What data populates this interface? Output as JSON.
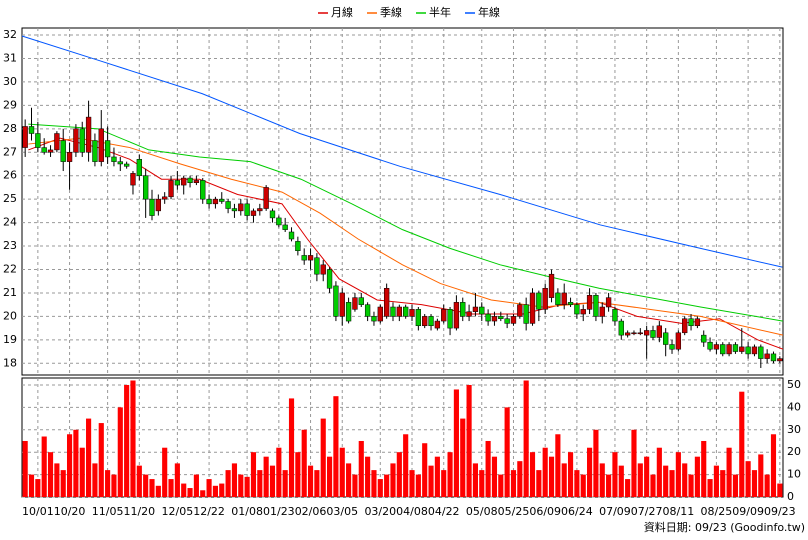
{
  "chart_data": {
    "type": "candlestick",
    "xlim": [
      0,
      120
    ],
    "xticks": [
      {
        "value": 2,
        "label": "10/01"
      },
      {
        "value": 7,
        "label": "10/20"
      },
      {
        "value": 13,
        "label": "11/05"
      },
      {
        "value": 18,
        "label": "11/20"
      },
      {
        "value": 24,
        "label": "12/05"
      },
      {
        "value": 29,
        "label": "12/22"
      },
      {
        "value": 35,
        "label": "01/08"
      },
      {
        "value": 40,
        "label": "01/23"
      },
      {
        "value": 45,
        "label": "02/06"
      },
      {
        "value": 50,
        "label": "03/05"
      },
      {
        "value": 56,
        "label": "03/20"
      },
      {
        "value": 61,
        "label": "04/08"
      },
      {
        "value": 66,
        "label": "04/22"
      },
      {
        "value": 72,
        "label": "05/08"
      },
      {
        "value": 77,
        "label": "05/25"
      },
      {
        "value": 82,
        "label": "06/09"
      },
      {
        "value": 87,
        "label": "06/24"
      },
      {
        "value": 93,
        "label": "07/09"
      },
      {
        "value": 98,
        "label": "07/27"
      },
      {
        "value": 103,
        "label": "08/11"
      },
      {
        "value": 109,
        "label": "08/25"
      },
      {
        "value": 114,
        "label": "09/09"
      },
      {
        "value": 119,
        "label": "09/23"
      }
    ],
    "ylim": [
      17.5,
      32.3
    ],
    "yticks": [
      18,
      19,
      20,
      21,
      22,
      23,
      24,
      25,
      26,
      27,
      28,
      29,
      30,
      31,
      32
    ],
    "grid": true,
    "up_color": "#cc0000",
    "down_color": "#00cc00",
    "candles": [
      [
        27.2,
        28.4,
        26.8,
        28.1
      ],
      [
        28.1,
        28.9,
        27.5,
        27.8
      ],
      [
        27.8,
        28.3,
        27.0,
        27.2
      ],
      [
        27.2,
        27.6,
        26.9,
        27.0
      ],
      [
        27.0,
        27.3,
        26.8,
        27.1
      ],
      [
        27.1,
        27.9,
        27.0,
        27.8
      ],
      [
        27.5,
        28.0,
        26.2,
        26.6
      ],
      [
        26.6,
        27.4,
        25.4,
        27.0
      ],
      [
        27.0,
        28.2,
        26.8,
        28.0
      ],
      [
        28.0,
        28.3,
        26.8,
        27.0
      ],
      [
        27.0,
        29.2,
        26.6,
        28.5
      ],
      [
        27.5,
        27.8,
        26.4,
        26.6
      ],
      [
        26.6,
        28.8,
        26.4,
        28.0
      ],
      [
        27.5,
        28.1,
        26.5,
        26.8
      ],
      [
        26.8,
        27.2,
        26.4,
        26.6
      ],
      [
        26.6,
        26.8,
        26.2,
        26.5
      ],
      [
        26.5,
        26.6,
        26.3,
        26.4
      ],
      [
        25.6,
        26.2,
        25.2,
        26.1
      ],
      [
        26.7,
        26.9,
        25.8,
        26.0
      ],
      [
        26.0,
        26.3,
        24.2,
        25.0
      ],
      [
        25.0,
        25.4,
        24.1,
        24.3
      ],
      [
        24.5,
        25.2,
        24.3,
        25.0
      ],
      [
        25.0,
        25.3,
        24.8,
        25.1
      ],
      [
        25.1,
        26.0,
        25.0,
        25.8
      ],
      [
        25.8,
        26.2,
        25.4,
        25.6
      ],
      [
        25.6,
        26.0,
        25.2,
        25.9
      ],
      [
        25.9,
        26.0,
        25.5,
        25.7
      ],
      [
        25.7,
        26.0,
        25.6,
        25.8
      ],
      [
        25.8,
        25.9,
        24.8,
        25.0
      ],
      [
        25.0,
        25.2,
        24.6,
        24.8
      ],
      [
        24.8,
        25.1,
        24.6,
        25.0
      ],
      [
        25.0,
        25.3,
        24.8,
        24.9
      ],
      [
        24.9,
        25.0,
        24.4,
        24.6
      ],
      [
        24.6,
        24.8,
        24.2,
        24.5
      ],
      [
        24.5,
        25.0,
        24.3,
        24.8
      ],
      [
        24.8,
        25.0,
        24.1,
        24.3
      ],
      [
        24.3,
        24.6,
        24.0,
        24.5
      ],
      [
        24.5,
        24.8,
        24.3,
        24.6
      ],
      [
        24.6,
        25.6,
        24.5,
        25.5
      ],
      [
        24.5,
        24.6,
        24.0,
        24.2
      ],
      [
        24.2,
        24.3,
        23.8,
        23.9
      ],
      [
        23.9,
        24.2,
        23.6,
        23.7
      ],
      [
        23.6,
        23.8,
        23.2,
        23.3
      ],
      [
        23.2,
        23.4,
        22.6,
        22.8
      ],
      [
        22.6,
        22.9,
        22.2,
        22.4
      ],
      [
        22.4,
        22.9,
        22.0,
        22.6
      ],
      [
        22.5,
        22.7,
        21.5,
        21.8
      ],
      [
        21.8,
        22.4,
        21.5,
        22.2
      ],
      [
        22.0,
        22.1,
        21.0,
        21.2
      ],
      [
        21.3,
        21.5,
        19.8,
        20.0
      ],
      [
        20.0,
        21.2,
        19.6,
        21.0
      ],
      [
        20.6,
        20.8,
        19.7,
        19.8
      ],
      [
        20.3,
        21.0,
        20.2,
        20.8
      ],
      [
        20.8,
        21.0,
        20.4,
        20.5
      ],
      [
        20.5,
        20.6,
        19.8,
        20.0
      ],
      [
        20.0,
        20.2,
        19.6,
        19.8
      ],
      [
        19.8,
        20.5,
        19.7,
        20.4
      ],
      [
        20.0,
        21.4,
        19.9,
        21.2
      ],
      [
        20.4,
        20.6,
        19.8,
        20.0
      ],
      [
        20.0,
        20.5,
        19.8,
        20.4
      ],
      [
        20.4,
        20.5,
        19.9,
        20.0
      ],
      [
        20.0,
        20.5,
        19.8,
        20.3
      ],
      [
        20.3,
        20.4,
        19.4,
        19.6
      ],
      [
        19.6,
        20.1,
        19.5,
        20.0
      ],
      [
        20.0,
        20.1,
        19.4,
        19.6
      ],
      [
        19.5,
        19.9,
        19.4,
        19.8
      ],
      [
        19.8,
        20.5,
        19.7,
        20.3
      ],
      [
        20.3,
        20.4,
        19.2,
        19.5
      ],
      [
        19.5,
        20.9,
        19.4,
        20.6
      ],
      [
        20.6,
        20.8,
        19.8,
        20.0
      ],
      [
        20.0,
        20.5,
        19.8,
        20.2
      ],
      [
        20.2,
        21.0,
        20.0,
        20.4
      ],
      [
        20.4,
        20.6,
        19.8,
        20.1
      ],
      [
        20.1,
        20.3,
        19.6,
        19.8
      ],
      [
        19.8,
        20.2,
        19.6,
        20.0
      ],
      [
        20.0,
        20.2,
        19.8,
        19.9
      ],
      [
        19.9,
        20.1,
        19.5,
        19.7
      ],
      [
        19.7,
        20.1,
        19.6,
        20.0
      ],
      [
        20.0,
        20.6,
        19.9,
        20.5
      ],
      [
        20.5,
        20.8,
        19.4,
        19.7
      ],
      [
        19.7,
        21.2,
        19.6,
        21.0
      ],
      [
        21.0,
        21.1,
        19.8,
        20.3
      ],
      [
        20.3,
        21.4,
        20.1,
        21.2
      ],
      [
        20.8,
        22.0,
        20.6,
        21.8
      ],
      [
        21.0,
        21.2,
        20.4,
        20.5
      ],
      [
        20.5,
        21.4,
        20.3,
        21.0
      ],
      [
        20.6,
        20.8,
        20.4,
        20.5
      ],
      [
        20.5,
        20.6,
        19.9,
        20.1
      ],
      [
        20.1,
        20.5,
        19.8,
        20.3
      ],
      [
        20.3,
        21.2,
        20.1,
        20.9
      ],
      [
        20.9,
        21.0,
        19.8,
        20.0
      ],
      [
        20.0,
        20.6,
        19.7,
        20.4
      ],
      [
        20.4,
        21.0,
        20.2,
        20.8
      ],
      [
        20.3,
        20.4,
        19.6,
        19.8
      ],
      [
        19.8,
        19.9,
        19.0,
        19.2
      ],
      [
        19.2,
        19.4,
        19.1,
        19.3
      ],
      [
        19.3,
        19.4,
        19.2,
        19.3
      ],
      [
        19.3,
        19.5,
        19.2,
        19.3
      ],
      [
        19.2,
        19.6,
        18.2,
        19.4
      ],
      [
        19.4,
        19.6,
        19.0,
        19.1
      ],
      [
        19.1,
        19.8,
        18.9,
        19.6
      ],
      [
        19.3,
        19.5,
        18.3,
        18.8
      ],
      [
        18.8,
        19.0,
        18.4,
        18.6
      ],
      [
        18.6,
        19.4,
        18.5,
        19.3
      ],
      [
        19.3,
        20.0,
        19.2,
        19.9
      ],
      [
        19.9,
        20.1,
        19.4,
        19.6
      ],
      [
        19.6,
        20.0,
        19.5,
        19.9
      ],
      [
        19.2,
        19.4,
        18.7,
        18.9
      ],
      [
        18.9,
        19.1,
        18.5,
        18.6
      ],
      [
        18.6,
        18.9,
        18.4,
        18.8
      ],
      [
        18.8,
        18.9,
        18.3,
        18.4
      ],
      [
        18.4,
        18.9,
        18.3,
        18.8
      ],
      [
        18.8,
        18.9,
        18.4,
        18.5
      ],
      [
        18.5,
        19.5,
        18.4,
        18.7
      ],
      [
        18.7,
        18.9,
        18.2,
        18.4
      ],
      [
        18.4,
        18.8,
        18.3,
        18.7
      ],
      [
        18.7,
        18.8,
        17.8,
        18.2
      ],
      [
        18.2,
        18.6,
        18.0,
        18.4
      ],
      [
        18.4,
        18.5,
        18.0,
        18.1
      ],
      [
        18.1,
        18.3,
        18.0,
        18.2
      ]
    ],
    "series": [
      {
        "name": "月線",
        "color": "#dd0000",
        "x": [
          1,
          6,
          12,
          17,
          22,
          28,
          34,
          41,
          45,
          50,
          56,
          63,
          71,
          79,
          85,
          91,
          97,
          104,
          110,
          116,
          120
        ],
        "values": [
          27.1,
          27.6,
          27.2,
          26.7,
          25.85,
          25.85,
          25.2,
          24.8,
          23.3,
          21.6,
          20.7,
          20.5,
          20.1,
          20.1,
          20.5,
          20.6,
          20.0,
          19.7,
          19.9,
          19.0,
          18.6
        ]
      },
      {
        "name": "季線",
        "color": "#ff6600",
        "x": [
          1,
          9,
          17,
          25,
          33,
          41,
          47,
          53,
          60,
          66,
          74,
          82,
          91,
          99,
          107,
          120
        ],
        "values": [
          27.35,
          27.6,
          27.2,
          26.5,
          25.85,
          25.3,
          24.4,
          23.3,
          22.2,
          21.4,
          20.7,
          20.4,
          20.6,
          20.3,
          20.0,
          19.2
        ]
      },
      {
        "name": "半年",
        "color": "#00cc00",
        "x": [
          1,
          12,
          20,
          28,
          36,
          44,
          52,
          60,
          67.5,
          75.4,
          83,
          91,
          99,
          107,
          120
        ],
        "values": [
          28.2,
          28.0,
          27.1,
          26.8,
          26.6,
          25.85,
          24.8,
          23.7,
          22.9,
          22.2,
          21.7,
          21.2,
          20.8,
          20.4,
          19.8
        ]
      },
      {
        "name": "年線",
        "color": "#0055ff",
        "x": [
          0,
          12.3,
          28.4,
          43.8,
          59.6,
          75.4,
          91.2,
          107,
          119.9
        ],
        "values": [
          31.96,
          30.9,
          29.5,
          27.8,
          26.4,
          25.2,
          23.9,
          22.9,
          22.1
        ]
      }
    ],
    "volume": {
      "type": "bar",
      "color": "#ff0000",
      "ylim": [
        0,
        52
      ],
      "yticks": [
        0,
        10,
        20,
        30,
        40,
        50
      ],
      "values": [
        25,
        10,
        8,
        27,
        20,
        15,
        12,
        28,
        30,
        22,
        35,
        15,
        33,
        12,
        10,
        40,
        50,
        52,
        14,
        10,
        8,
        5,
        22,
        8,
        15,
        6,
        4,
        10,
        3,
        8,
        5,
        6,
        12,
        15,
        10,
        9,
        20,
        12,
        18,
        14,
        22,
        12,
        44,
        20,
        30,
        14,
        12,
        35,
        18,
        45,
        22,
        15,
        10,
        25,
        18,
        12,
        8,
        10,
        15,
        20,
        28,
        12,
        10,
        24,
        14,
        18,
        12,
        20,
        48,
        35,
        50,
        15,
        12,
        25,
        18,
        10,
        40,
        12,
        16,
        52,
        20,
        12,
        22,
        18,
        28,
        15,
        20,
        12,
        10,
        22,
        30,
        15,
        10,
        20,
        14,
        8,
        30,
        15,
        18,
        10,
        22,
        14,
        12,
        20,
        15,
        10,
        18,
        25,
        8,
        14,
        12,
        22,
        10,
        47,
        16,
        12,
        19,
        10,
        28,
        6
      ]
    },
    "source_note": "資料日期: 09/23 (Goodinfo.tw)"
  }
}
